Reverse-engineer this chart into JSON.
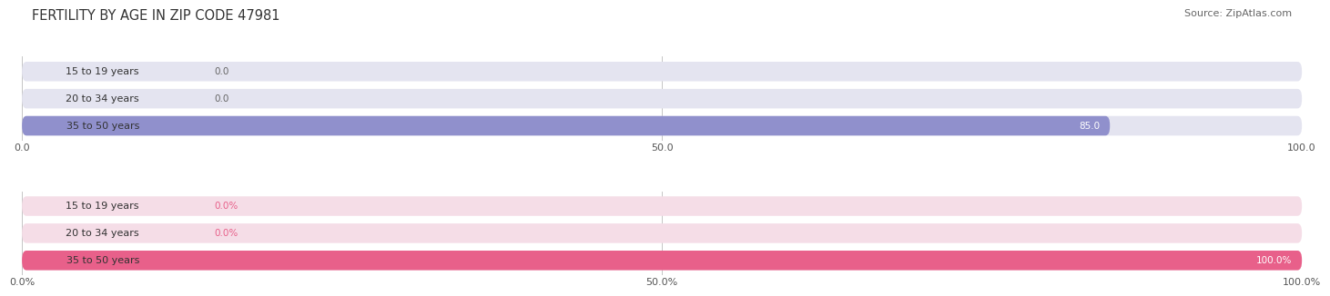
{
  "title": "FERTILITY BY AGE IN ZIP CODE 47981",
  "source": "Source: ZipAtlas.com",
  "top_chart": {
    "categories": [
      "15 to 19 years",
      "20 to 34 years",
      "35 to 50 years"
    ],
    "values": [
      0.0,
      0.0,
      85.0
    ],
    "xticks": [
      0.0,
      50.0,
      100.0
    ],
    "xtick_labels": [
      "0.0",
      "50.0",
      "100.0"
    ],
    "bar_color": "#9090cc",
    "bar_bg_color": "#e4e4f0",
    "label_color_inside": "#ffffff",
    "label_color_outside": "#666666",
    "cat_label_color": "#333333",
    "label_threshold": 10
  },
  "bottom_chart": {
    "categories": [
      "15 to 19 years",
      "20 to 34 years",
      "35 to 50 years"
    ],
    "values": [
      0.0,
      0.0,
      100.0
    ],
    "xticks": [
      0.0,
      50.0,
      100.0
    ],
    "xtick_labels": [
      "0.0%",
      "50.0%",
      "100.0%"
    ],
    "bar_color": "#e8608a",
    "bar_bg_color": "#f5dde7",
    "label_color_inside": "#ffffff",
    "label_color_outside": "#e8608a",
    "cat_label_color": "#333333",
    "label_threshold": 10
  },
  "fig_bg": "#ffffff",
  "title_fontsize": 10.5,
  "source_fontsize": 8,
  "tick_fontsize": 8,
  "category_fontsize": 8,
  "value_fontsize": 7.5,
  "bar_height": 0.72,
  "bar_gap": 0.28
}
